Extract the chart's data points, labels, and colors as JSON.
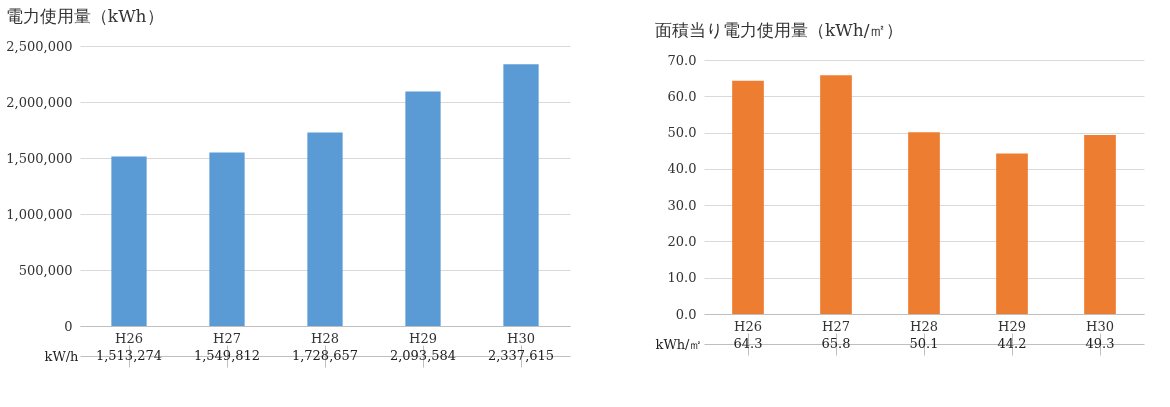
{
  "chart_data": [
    {
      "type": "bar",
      "title": "電力使用量（kWh）",
      "categories": [
        "H26",
        "H27",
        "H28",
        "H29",
        "H30"
      ],
      "series": [
        {
          "name": "kW/h",
          "color": "#5b9bd5",
          "values": [
            1513274,
            1549812,
            1728657,
            2093584,
            2337615
          ],
          "value_labels": [
            "1,513,274",
            "1,549,812",
            "1,728,657",
            "2,093,584",
            "2,337,615"
          ]
        }
      ],
      "ylim": [
        0,
        2500000
      ],
      "yticks": [
        0,
        {
          "value": 500000,
          "label": "500,000"
        },
        {
          "value": 1000000,
          "label": "1,000,000"
        },
        {
          "value": 1500000,
          "label": "1,500,000"
        },
        {
          "value": 2000000,
          "label": "2,000,000"
        },
        {
          "value": 2500000,
          "label": "2,500,000"
        }
      ],
      "grid": "y"
    },
    {
      "type": "bar",
      "title": "面積当り電力使用量（kWh/㎡）",
      "categories": [
        "H26",
        "H27",
        "H28",
        "H29",
        "H30"
      ],
      "series": [
        {
          "name": "kWh/㎡",
          "color": "#ed7d31",
          "values": [
            64.3,
            65.8,
            50.1,
            44.2,
            49.3
          ],
          "value_labels": [
            "64.3",
            "65.8",
            "50.1",
            "44.2",
            "49.3"
          ]
        }
      ],
      "ylim": [
        0,
        70
      ],
      "yticks": [
        {
          "value": 0,
          "label": "0.0"
        },
        {
          "value": 10,
          "label": "10.0"
        },
        {
          "value": 20,
          "label": "20.0"
        },
        {
          "value": 30,
          "label": "30.0"
        },
        {
          "value": 40,
          "label": "40.0"
        },
        {
          "value": 50,
          "label": "50.0"
        },
        {
          "value": 60,
          "label": "60.0"
        },
        {
          "value": 70,
          "label": "70.0"
        }
      ],
      "grid": "y"
    }
  ]
}
